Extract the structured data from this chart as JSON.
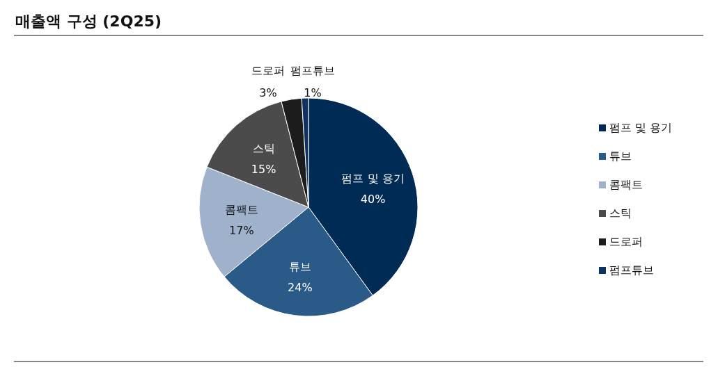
{
  "chart_data": {
    "type": "pie",
    "title": "매출액 구성 (2Q25)",
    "categories": [
      "펌프 및 용기",
      "튜브",
      "콤팩트",
      "스틱",
      "드로퍼",
      "펌프튜브"
    ],
    "values": [
      40,
      24,
      17,
      15,
      3,
      1
    ],
    "value_labels": [
      "40%",
      "24%",
      "17%",
      "15%",
      "3%",
      "1%"
    ],
    "colors": [
      "#002b55",
      "#2a5a88",
      "#a0b1cb",
      "#4b4b4b",
      "#1c1c1c",
      "#0e3260"
    ],
    "legend": "right"
  }
}
